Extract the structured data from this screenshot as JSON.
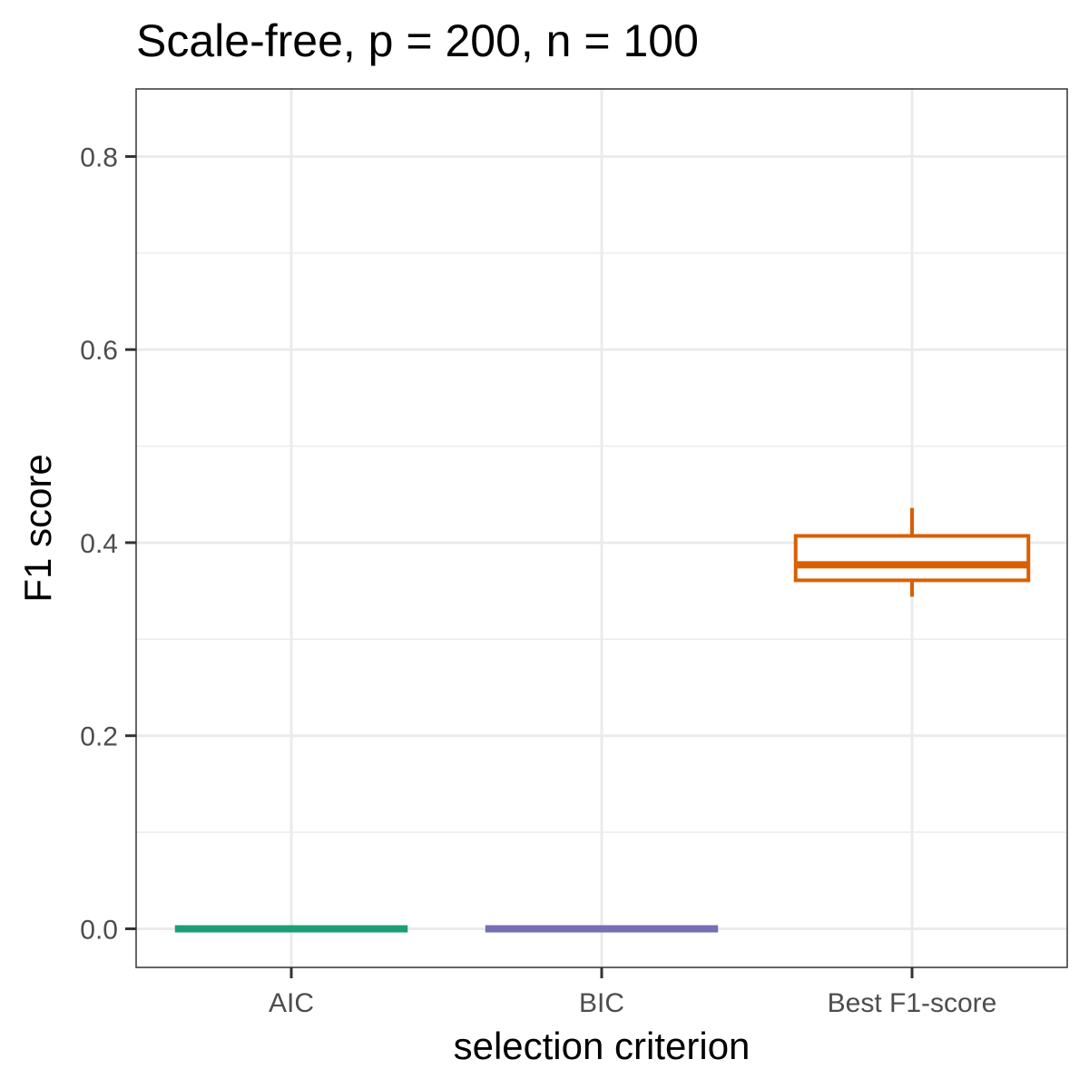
{
  "chart_data": {
    "type": "box",
    "title": "Scale-free, p = 200, n = 100",
    "xlabel": "selection criterion",
    "ylabel": "F1 score",
    "ylim": [
      -0.04,
      0.87
    ],
    "yticks": [
      0.0,
      0.2,
      0.4,
      0.6,
      0.8
    ],
    "ytick_labels": [
      "0.0",
      "0.2",
      "0.4",
      "0.6",
      "0.8"
    ],
    "y_minor_ticks": [
      0.1,
      0.3,
      0.5,
      0.7
    ],
    "grid": true,
    "legend": "none",
    "categories": [
      "AIC",
      "BIC",
      "Best F1-score"
    ],
    "boxes": [
      {
        "category": "AIC",
        "color": "#1b9e77",
        "min": 0.0,
        "q1": 0.0,
        "median": 0.0,
        "q3": 0.0,
        "max": 0.0
      },
      {
        "category": "BIC",
        "color": "#7570b3",
        "min": 0.0,
        "q1": 0.0,
        "median": 0.0,
        "q3": 0.0,
        "max": 0.0
      },
      {
        "category": "Best F1-score",
        "color": "#d95f02",
        "min": 0.344,
        "q1": 0.361,
        "median": 0.377,
        "q3": 0.407,
        "max": 0.436
      }
    ]
  }
}
